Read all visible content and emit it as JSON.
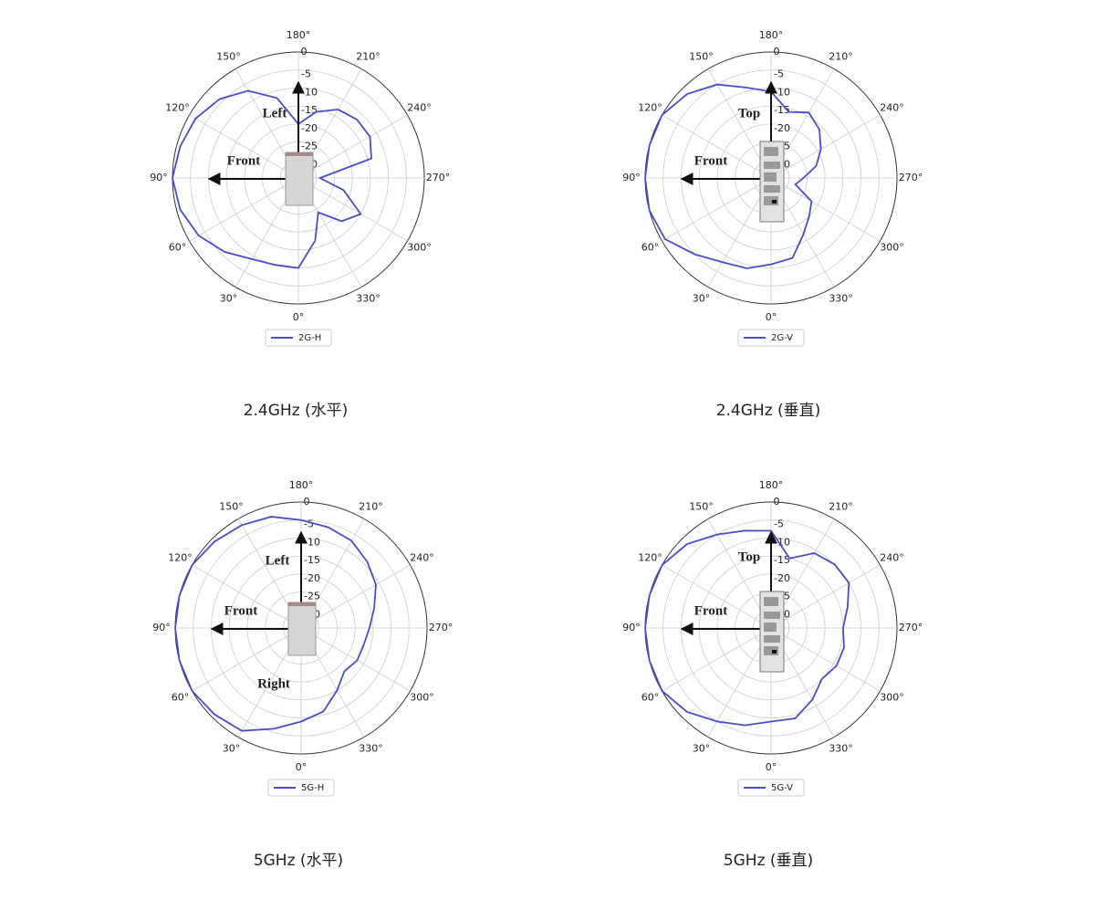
{
  "chart_data": [
    {
      "type": "polar",
      "title": "2.4GHz (水平)",
      "annotations": [
        "Left",
        "Front"
      ],
      "theta": [
        0,
        15,
        30,
        45,
        60,
        75,
        90,
        105,
        120,
        135,
        150,
        165,
        180,
        195,
        210,
        225,
        240,
        255,
        270,
        285,
        300,
        315,
        330,
        345
      ],
      "series": [
        {
          "name": "2G-H",
          "color": "#4b4bd0",
          "values": [
            -10,
            -10,
            -9,
            -6,
            -3,
            -1,
            0,
            -1,
            -2,
            -4,
            -7,
            -12,
            -20,
            -16,
            -13,
            -12,
            -12,
            -14,
            -29,
            -22,
            -15,
            -18,
            -24,
            -17
          ]
        }
      ],
      "rlim": [
        -35,
        0
      ],
      "rticks": [
        0,
        -5,
        -10,
        -15,
        -20,
        -25,
        -30
      ],
      "thetaticks": [
        {
          "value": 0,
          "label": "0°"
        },
        {
          "value": 30,
          "label": "30°"
        },
        {
          "value": 60,
          "label": "60°"
        },
        {
          "value": 90,
          "label": "90°"
        },
        {
          "value": 120,
          "label": "120°"
        },
        {
          "value": 150,
          "label": "150°"
        },
        {
          "value": 180,
          "label": "180°"
        },
        {
          "value": 210,
          "label": "210°"
        },
        {
          "value": 240,
          "label": "240°"
        },
        {
          "value": 270,
          "label": "270°"
        },
        {
          "value": 300,
          "label": "300°"
        },
        {
          "value": 330,
          "label": "330°"
        }
      ],
      "grid": true
    },
    {
      "type": "polar",
      "title": "2.4GHz (垂直)",
      "annotations": [
        "Top",
        "Front"
      ],
      "theta": [
        0,
        15,
        30,
        45,
        60,
        75,
        90,
        105,
        120,
        135,
        150,
        165,
        180,
        195,
        210,
        225,
        240,
        255,
        270,
        285,
        300,
        315,
        330,
        345
      ],
      "series": [
        {
          "name": "2G-V",
          "color": "#4b4bd0",
          "values": [
            -11,
            -9,
            -8,
            -5,
            -1,
            0,
            0,
            0,
            0,
            -2,
            -5,
            -9,
            -11,
            -16,
            -14,
            -16,
            -19,
            -22,
            -26,
            -28,
            -22,
            -20,
            -17,
            -12
          ]
        }
      ],
      "rlim": [
        -35,
        0
      ],
      "rticks": [
        0,
        -5,
        -10,
        -15,
        -20,
        -25,
        -30
      ],
      "thetaticks": [
        {
          "value": 0,
          "label": "0°"
        },
        {
          "value": 30,
          "label": "30°"
        },
        {
          "value": 60,
          "label": "60°"
        },
        {
          "value": 90,
          "label": "90°"
        },
        {
          "value": 120,
          "label": "120°"
        },
        {
          "value": 150,
          "label": "150°"
        },
        {
          "value": 180,
          "label": "180°"
        },
        {
          "value": 210,
          "label": "210°"
        },
        {
          "value": 240,
          "label": "240°"
        },
        {
          "value": 270,
          "label": "270°"
        },
        {
          "value": 300,
          "label": "300°"
        },
        {
          "value": 330,
          "label": "330°"
        }
      ],
      "grid": true
    },
    {
      "type": "polar",
      "title": "5GHz (水平)",
      "annotations": [
        "Left",
        "Front",
        "Right"
      ],
      "theta": [
        0,
        15,
        30,
        45,
        60,
        75,
        90,
        105,
        120,
        135,
        150,
        165,
        180,
        195,
        210,
        225,
        240,
        255,
        270,
        285,
        300,
        315,
        330,
        345
      ],
      "series": [
        {
          "name": "5G-H",
          "color": "#4b4bd0",
          "values": [
            -9,
            -6,
            -2,
            -1,
            0,
            0,
            0,
            0,
            0,
            -1,
            -2,
            -3,
            -5,
            -6,
            -7,
            -9,
            -11,
            -14,
            -16,
            -17,
            -17,
            -18,
            -15,
            -11
          ]
        }
      ],
      "rlim": [
        -35,
        0
      ],
      "rticks": [
        0,
        -5,
        -10,
        -15,
        -20,
        -25,
        -30
      ],
      "thetaticks": [
        {
          "value": 0,
          "label": "0°"
        },
        {
          "value": 30,
          "label": "30°"
        },
        {
          "value": 60,
          "label": "60°"
        },
        {
          "value": 90,
          "label": "90°"
        },
        {
          "value": 120,
          "label": "120°"
        },
        {
          "value": 150,
          "label": "150°"
        },
        {
          "value": 180,
          "label": "180°"
        },
        {
          "value": 210,
          "label": "210°"
        },
        {
          "value": 240,
          "label": "240°"
        },
        {
          "value": 270,
          "label": "270°"
        },
        {
          "value": 300,
          "label": "300°"
        },
        {
          "value": 330,
          "label": "330°"
        }
      ],
      "grid": true
    },
    {
      "type": "polar",
      "title": "5GHz (垂直)",
      "annotations": [
        "Top",
        "Front"
      ],
      "theta": [
        0,
        15,
        30,
        45,
        60,
        75,
        90,
        105,
        120,
        135,
        150,
        165,
        180,
        195,
        210,
        225,
        240,
        255,
        270,
        285,
        300,
        315,
        330,
        345
      ],
      "series": [
        {
          "name": "5G-V",
          "color": "#4b4bd0",
          "values": [
            -9,
            -7,
            -5,
            -2,
            0,
            0,
            0,
            0,
            0,
            -2,
            -5,
            -7,
            -8,
            -15,
            -11,
            -10,
            -10,
            -13,
            -15,
            -14,
            -14,
            -15,
            -12,
            -9
          ]
        }
      ],
      "rlim": [
        -35,
        0
      ],
      "rticks": [
        0,
        -5,
        -10,
        -15,
        -20,
        -25,
        -30
      ],
      "thetaticks": [
        {
          "value": 0,
          "label": "0°"
        },
        {
          "value": 30,
          "label": "30°"
        },
        {
          "value": 60,
          "label": "60°"
        },
        {
          "value": 90,
          "label": "90°"
        },
        {
          "value": 120,
          "label": "120°"
        },
        {
          "value": 150,
          "label": "150°"
        },
        {
          "value": 180,
          "label": "180°"
        },
        {
          "value": 210,
          "label": "210°"
        },
        {
          "value": 240,
          "label": "240°"
        },
        {
          "value": 270,
          "label": "270°"
        },
        {
          "value": 300,
          "label": "300°"
        },
        {
          "value": 330,
          "label": "330°"
        }
      ],
      "grid": true
    }
  ]
}
